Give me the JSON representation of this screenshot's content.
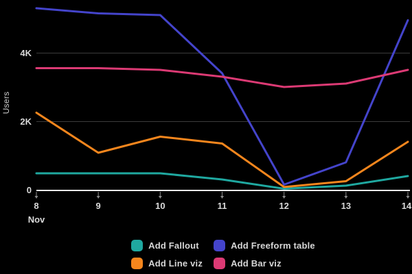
{
  "colors": {
    "background": "#000000",
    "grid": "#3c3c3c",
    "axis": "#f2f2f2",
    "tick": "#8a8a8a",
    "text": "#d9d9d9"
  },
  "chart_data": {
    "type": "line",
    "title": "",
    "xlabel": "",
    "x_axis_month_label": "Nov",
    "ylabel": "Users",
    "x": [
      "8",
      "9",
      "10",
      "11",
      "12",
      "13",
      "14"
    ],
    "y_ticks": [
      {
        "value": 0,
        "label": "0"
      },
      {
        "value": 2000,
        "label": "2K"
      },
      {
        "value": 4000,
        "label": "4K"
      }
    ],
    "ylim": [
      0,
      5540
    ],
    "grid": true,
    "legend_position": "bottom",
    "series": [
      {
        "name": "Add Fallout",
        "color": "#1fa8a0",
        "values": [
          480,
          480,
          480,
          300,
          30,
          120,
          400
        ]
      },
      {
        "name": "Add Freeform table",
        "color": "#4444cb",
        "values": [
          5300,
          5150,
          5100,
          3400,
          150,
          800,
          4950
        ]
      },
      {
        "name": "Add Line viz",
        "color": "#f5861d",
        "values": [
          2250,
          1080,
          1550,
          1350,
          80,
          250,
          1400
        ]
      },
      {
        "name": "Add Bar viz",
        "color": "#dc3a74",
        "values": [
          3550,
          3550,
          3500,
          3300,
          3000,
          3100,
          3500
        ]
      }
    ]
  }
}
